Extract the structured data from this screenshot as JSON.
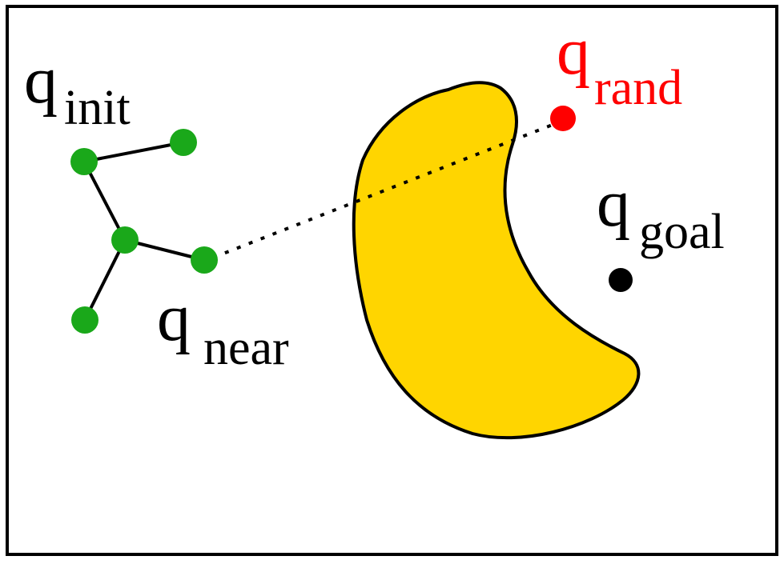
{
  "diagram": {
    "colors": {
      "frame": "#000000",
      "background": "#ffffff",
      "tree_node": "#1aa81a",
      "tree_edge": "#000000",
      "obstacle_fill": "#ffd500",
      "obstacle_stroke": "#000000",
      "random_sample": "#ff0000",
      "goal": "#000000",
      "extension_line": "#000000"
    },
    "labels": {
      "init": {
        "base": "q",
        "sub": "init"
      },
      "near": {
        "base": "q",
        "sub": "near"
      },
      "rand": {
        "base": "q",
        "sub": "rand"
      },
      "goal": {
        "base": "q",
        "sub": "goal"
      }
    },
    "tree": {
      "nodes": [
        "node-a",
        "node-b",
        "node-c",
        "node-d",
        "node-e"
      ],
      "edges": [
        [
          "node-a",
          "node-b"
        ],
        [
          "node-b",
          "node-c"
        ],
        [
          "node-c",
          "node-d"
        ],
        [
          "node-c",
          "node-e"
        ]
      ]
    },
    "extension": {
      "from": "q_near",
      "to": "q_rand",
      "style": "dotted"
    }
  }
}
